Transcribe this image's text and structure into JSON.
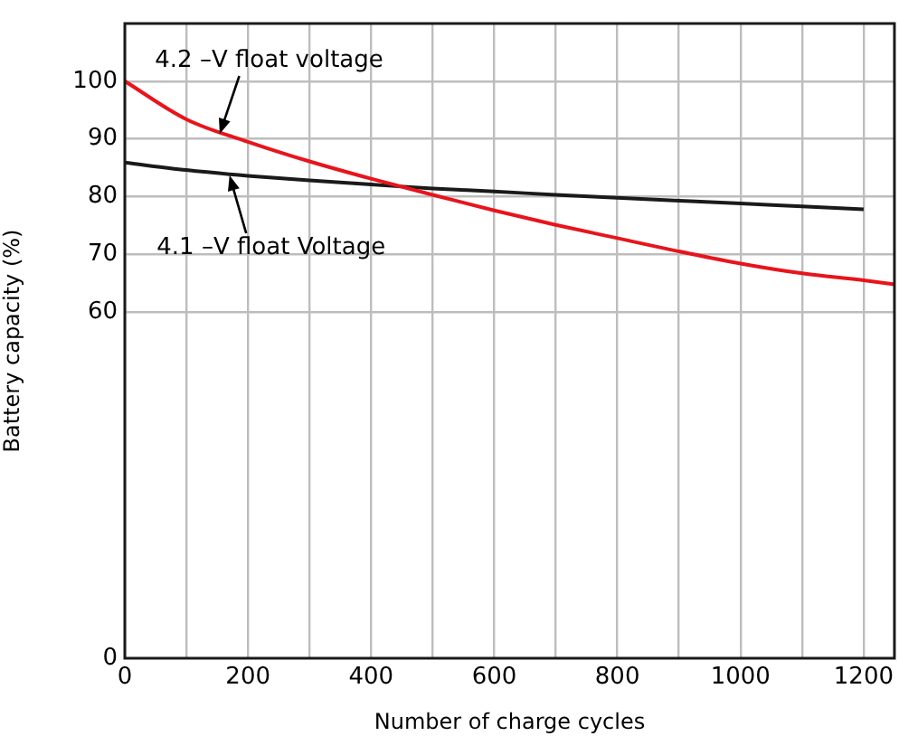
{
  "chart_data": {
    "type": "line",
    "xlabel": "Number of charge cycles",
    "ylabel": "Battery capacity (%)",
    "x": [
      0,
      100,
      200,
      300,
      400,
      500,
      600,
      700,
      800,
      900,
      1000,
      1100,
      1200,
      1250
    ],
    "series": [
      {
        "color": "#e8141c",
        "values": [
          100,
          93.4,
          89.5,
          86.1,
          83.1,
          80.3,
          77.6,
          75.1,
          72.8,
          70.5,
          68.4,
          66.7,
          65.5,
          64.8
        ]
      },
      {
        "color": "#1a1a1a",
        "values": [
          85.9,
          84.6,
          83.6,
          82.8,
          82.1,
          81.4,
          80.9,
          80.3,
          79.8,
          79.3,
          78.8,
          78.3,
          77.8,
          null
        ]
      }
    ],
    "xlim": [
      0,
      1250
    ],
    "ylim": [
      0,
      110
    ],
    "xticks": [
      0,
      {
        "value": 100,
        "label": null
      },
      200,
      {
        "value": 300,
        "label": null
      },
      400,
      {
        "value": 500,
        "label": null
      },
      600,
      {
        "value": 700,
        "label": null
      },
      800,
      {
        "value": 900,
        "label": null
      },
      1000,
      {
        "value": 1100,
        "label": null
      },
      1200
    ],
    "yticks": [
      0,
      60,
      70,
      80,
      90,
      100
    ],
    "annotations": [
      {
        "text": "4.2 –V float voltage",
        "x": 155,
        "y": 91
      },
      {
        "text": "4.1 –V float Voltage",
        "x": 170,
        "y": 83.7
      }
    ],
    "grid": true,
    "legend": false,
    "marker": "none",
    "line_style": "solid"
  }
}
